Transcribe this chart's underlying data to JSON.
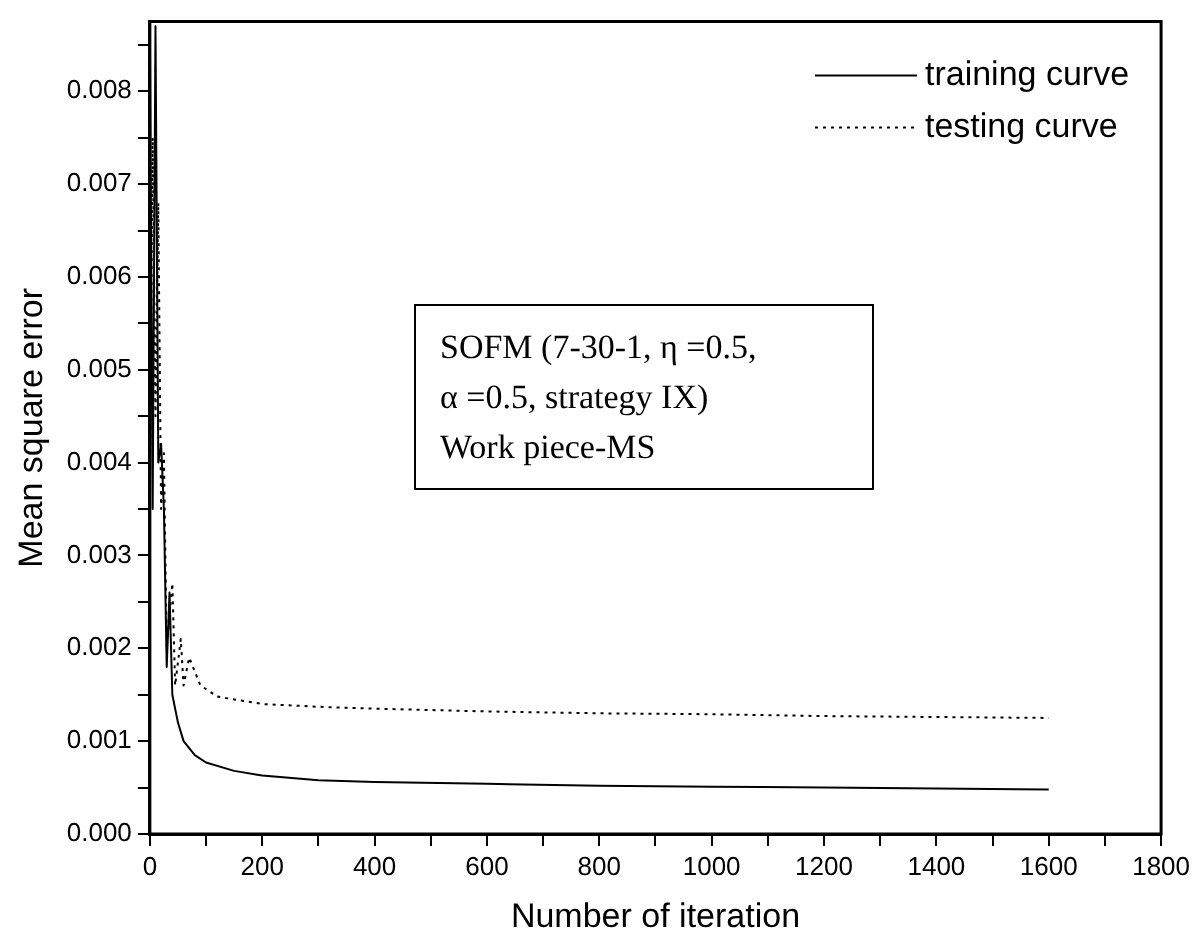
{
  "chart_data": {
    "type": "line",
    "xlabel": "Number of iteration",
    "ylabel": "Mean square error",
    "xlim": [
      0,
      1800
    ],
    "xticks": [
      0,
      {
        "value": 100,
        "label": null
      },
      200,
      {
        "value": 300,
        "label": null
      },
      400,
      {
        "value": 500,
        "label": null
      },
      600,
      {
        "value": 700,
        "label": null
      },
      800,
      {
        "value": 900,
        "label": null
      },
      1000,
      {
        "value": 1100,
        "label": null
      },
      1200,
      {
        "value": 1300,
        "label": null
      },
      1400,
      {
        "value": 1500,
        "label": null
      },
      1600,
      {
        "value": 1700,
        "label": null
      },
      1800
    ],
    "ylim": [
      0,
      0.00875
    ],
    "yticks": [
      {
        "value": 0,
        "label": "0.000"
      },
      {
        "value": 0.0005,
        "label": null
      },
      0.001,
      {
        "value": 0.0015,
        "label": null
      },
      0.002,
      {
        "value": 0.0025,
        "label": null
      },
      0.003,
      {
        "value": 0.0035,
        "label": null
      },
      0.004,
      {
        "value": 0.0045,
        "label": null
      },
      0.005,
      {
        "value": 0.0055,
        "label": null
      },
      0.006,
      {
        "value": 0.0065,
        "label": null
      },
      0.007,
      {
        "value": 0.0075,
        "label": null
      },
      0.008,
      {
        "value": 0.0085,
        "label": null
      }
    ],
    "grid": false,
    "legend": "top right",
    "marker": "none",
    "annotations": [
      "SOFM (7-30-1, η =0.5,",
      "α =0.5, strategy IX)",
      "Work piece-MS"
    ],
    "series": [
      {
        "name": "training curve",
        "color": "#000000",
        "line_style": "solid",
        "x": [
          0,
          5,
          10,
          15,
          20,
          25,
          30,
          35,
          40,
          50,
          60,
          80,
          100,
          150,
          200,
          300,
          400,
          600,
          800,
          1000,
          1200,
          1400,
          1600
        ],
        "values": [
          0.0087,
          0.0035,
          0.0087,
          0.004,
          0.0042,
          0.0035,
          0.0018,
          0.0026,
          0.0015,
          0.0012,
          0.001,
          0.00085,
          0.00077,
          0.00068,
          0.00063,
          0.00058,
          0.00056,
          0.00054,
          0.00052,
          0.00051,
          0.0005,
          0.00049,
          0.00048
        ]
      },
      {
        "name": "testing curve",
        "color": "#000000",
        "line_style": "dotted",
        "x": [
          0,
          5,
          10,
          15,
          20,
          25,
          30,
          40,
          45,
          55,
          60,
          70,
          90,
          120,
          200,
          300,
          400,
          600,
          800,
          1000,
          1200,
          1400,
          1600
        ],
        "values": [
          0.0035,
          0.0075,
          0.0045,
          0.0068,
          0.0035,
          0.0041,
          0.002,
          0.0027,
          0.0016,
          0.0021,
          0.0016,
          0.0019,
          0.0016,
          0.00148,
          0.0014,
          0.00137,
          0.00135,
          0.00132,
          0.0013,
          0.00129,
          0.00127,
          0.00126,
          0.00125
        ]
      }
    ]
  }
}
